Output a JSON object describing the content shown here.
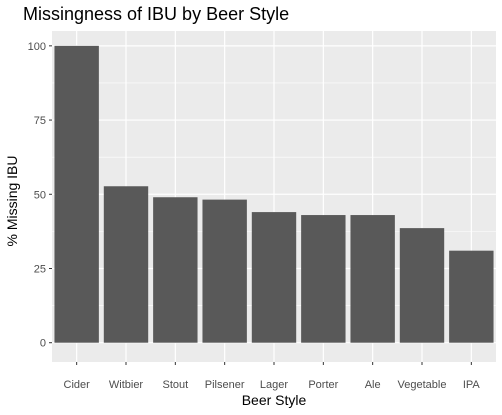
{
  "chart_data": {
    "type": "bar",
    "title": "Missingness of IBU by Beer Style",
    "xlabel": "Beer Style",
    "ylabel": "% Missing IBU",
    "categories": [
      "Cider",
      "Witbier",
      "Stout",
      "Pilsener",
      "Lager",
      "Porter",
      "Ale",
      "Vegetable",
      "IPA"
    ],
    "values": [
      100,
      52.7,
      49,
      48.2,
      44,
      43,
      43,
      38.6,
      31
    ],
    "ylim": [
      -6.5,
      105
    ],
    "yticks": [
      0,
      25,
      50,
      75,
      100
    ],
    "grid": true,
    "colors": {
      "panel": "#ebebeb",
      "grid": "#ffffff",
      "bar": "#595959",
      "tick": "#4d4d4d"
    }
  }
}
